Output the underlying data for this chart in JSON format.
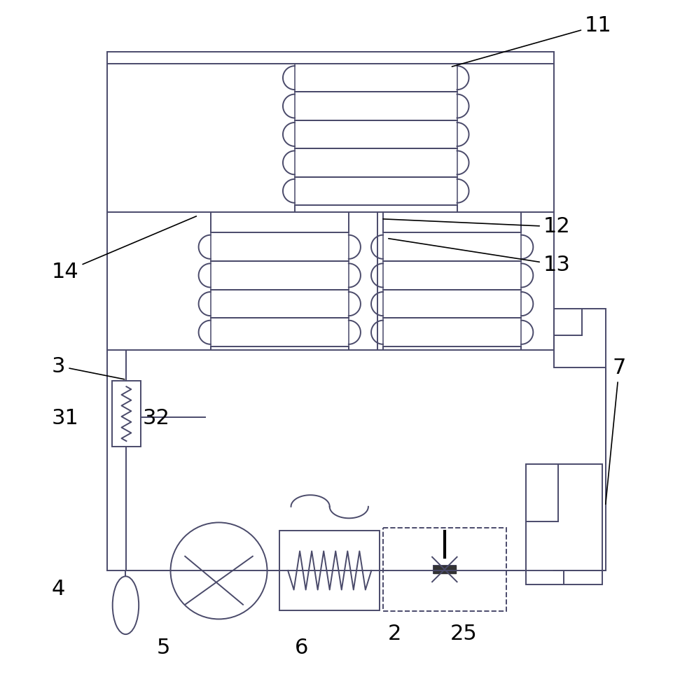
{
  "bg_color": "#ffffff",
  "lc": "#4a4a6a",
  "lw": 1.4,
  "fig_width": 9.71,
  "fig_height": 10.0
}
